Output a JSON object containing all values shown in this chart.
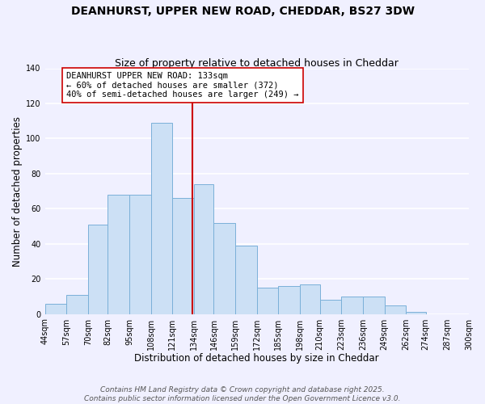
{
  "title": "DEANHURST, UPPER NEW ROAD, CHEDDAR, BS27 3DW",
  "subtitle": "Size of property relative to detached houses in Cheddar",
  "xlabel": "Distribution of detached houses by size in Cheddar",
  "ylabel": "Number of detached properties",
  "bar_left_edges": [
    44,
    57,
    70,
    82,
    95,
    108,
    121,
    134,
    146,
    159,
    172,
    185,
    198,
    210,
    223,
    236,
    249,
    262,
    274,
    287
  ],
  "bar_widths": [
    13,
    13,
    12,
    13,
    13,
    13,
    13,
    12,
    13,
    13,
    13,
    13,
    12,
    13,
    13,
    13,
    13,
    12,
    13,
    13
  ],
  "bar_heights": [
    6,
    11,
    51,
    68,
    68,
    109,
    66,
    74,
    52,
    39,
    15,
    16,
    17,
    8,
    10,
    10,
    5,
    1,
    0,
    0
  ],
  "bar_color": "#cce0f5",
  "bar_edge_color": "#7ab0d8",
  "background_color": "#f0f0ff",
  "grid_color": "#ffffff",
  "vline_x": 133,
  "vline_color": "#cc0000",
  "annotation_text": "DEANHURST UPPER NEW ROAD: 133sqm\n← 60% of detached houses are smaller (372)\n40% of semi-detached houses are larger (249) →",
  "annotation_box_color": "#ffffff",
  "annotation_box_edge_color": "#cc0000",
  "xlim": [
    44,
    300
  ],
  "ylim": [
    0,
    140
  ],
  "xtick_labels": [
    "44sqm",
    "57sqm",
    "70sqm",
    "82sqm",
    "95sqm",
    "108sqm",
    "121sqm",
    "134sqm",
    "146sqm",
    "159sqm",
    "172sqm",
    "185sqm",
    "198sqm",
    "210sqm",
    "223sqm",
    "236sqm",
    "249sqm",
    "262sqm",
    "274sqm",
    "287sqm",
    "300sqm"
  ],
  "xtick_positions": [
    44,
    57,
    70,
    82,
    95,
    108,
    121,
    134,
    146,
    159,
    172,
    185,
    198,
    210,
    223,
    236,
    249,
    262,
    274,
    287,
    300
  ],
  "ytick_positions": [
    0,
    20,
    40,
    60,
    80,
    100,
    120,
    140
  ],
  "footer_line1": "Contains HM Land Registry data © Crown copyright and database right 2025.",
  "footer_line2": "Contains public sector information licensed under the Open Government Licence v3.0.",
  "title_fontsize": 10,
  "subtitle_fontsize": 9,
  "axis_label_fontsize": 8.5,
  "tick_fontsize": 7,
  "annotation_fontsize": 7.5,
  "footer_fontsize": 6.5
}
